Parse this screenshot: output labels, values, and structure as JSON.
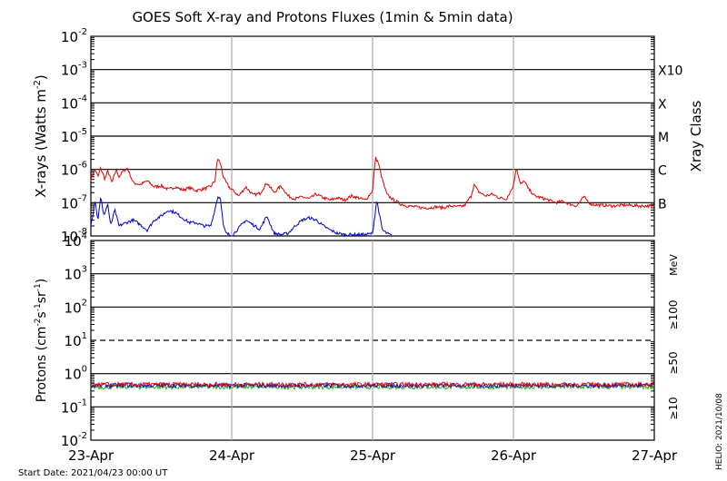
{
  "title": "GOES Soft X-ray and Protons Fluxes   (1min & 5min data)",
  "start_date": "Start Date: 2021/04/23 00:00 UT",
  "credit": "HELIO: 2021/10/08",
  "colors": {
    "xray_long": "#e00000",
    "xray_short": "#0000cc",
    "protons_10": "#e00000",
    "protons_50": "#0000cc",
    "protons_100": "#00bb00",
    "grid": "#000000",
    "day_divider": "#aaaaaa"
  },
  "chart_data": [
    {
      "type": "line",
      "panel": "xrays",
      "ylabel": "X-rays (Watts m",
      "ylabel_sup": "-2",
      "ylabel_close": ")",
      "yscale": "log",
      "ylim": [
        1e-08,
        0.01
      ],
      "y_tick_exponents": [
        "-2",
        "-3",
        "-4",
        "-5",
        "-6",
        "-7",
        "-8"
      ],
      "right_axis_label": "Xray Class",
      "right_classes": [
        {
          "label": "X10",
          "flux": 0.001
        },
        {
          "label": "X",
          "flux": 0.0001
        },
        {
          "label": "M",
          "flux": 1e-05
        },
        {
          "label": "C",
          "flux": 1e-06
        },
        {
          "label": "B",
          "flux": 1e-07
        }
      ],
      "x_range_days": [
        0,
        4
      ],
      "series": [
        {
          "key": "long",
          "x": [
            0,
            0.03,
            0.05,
            0.07,
            0.1,
            0.12,
            0.15,
            0.18,
            0.2,
            0.23,
            0.26,
            0.3,
            0.35,
            0.4,
            0.45,
            0.5,
            0.55,
            0.6,
            0.65,
            0.7,
            0.75,
            0.8,
            0.85,
            0.88,
            0.9,
            0.92,
            0.94,
            0.96,
            0.98,
            1.0,
            1.05,
            1.1,
            1.15,
            1.2,
            1.25,
            1.3,
            1.35,
            1.4,
            1.45,
            1.5,
            1.55,
            1.6,
            1.65,
            1.7,
            1.75,
            1.8,
            1.85,
            1.9,
            1.95,
            2.0,
            2.02,
            2.04,
            2.06,
            2.08,
            2.1,
            2.12,
            2.15,
            2.2,
            2.25,
            2.3,
            2.35,
            2.4,
            2.45,
            2.5,
            2.55,
            2.6,
            2.65,
            2.7,
            2.72,
            2.75,
            2.8,
            2.85,
            2.9,
            2.95,
            3.0,
            3.02,
            3.05,
            3.08,
            3.1,
            3.15,
            3.2,
            3.25,
            3.3,
            3.35,
            3.4,
            3.45,
            3.5,
            3.55,
            3.6,
            3.7,
            3.8,
            3.9,
            4.0
          ],
          "y": [
            5e-07,
            1e-06,
            6e-07,
            1.1e-06,
            5e-07,
            9e-07,
            4e-07,
            1e-06,
            6e-07,
            9e-07,
            1.1e-06,
            4e-07,
            3.5e-07,
            4.5e-07,
            3e-07,
            3.2e-07,
            2.5e-07,
            3e-07,
            2.4e-07,
            2.8e-07,
            2.3e-07,
            2.6e-07,
            3e-07,
            4.5e-07,
            2.2e-06,
            1.5e-06,
            6e-07,
            4e-07,
            3e-07,
            2.5e-07,
            1.6e-07,
            3e-07,
            1.7e-07,
            1.9e-07,
            4e-07,
            2e-07,
            3.2e-07,
            1.6e-07,
            1.3e-07,
            1.5e-07,
            1.3e-07,
            1.8e-07,
            1.4e-07,
            1.2e-07,
            1.4e-07,
            1.2e-07,
            1.6e-07,
            1.4e-07,
            1.2e-07,
            2.3e-07,
            2.3e-06,
            1.6e-06,
            7e-07,
            3.5e-07,
            1.8e-07,
            1.5e-07,
            1.2e-07,
            9e-08,
            8e-08,
            7.5e-08,
            7e-08,
            7e-08,
            7.5e-08,
            7e-08,
            8e-08,
            7.5e-08,
            8e-08,
            1.6e-07,
            3.5e-07,
            2.2e-07,
            1.6e-07,
            1.8e-07,
            1.4e-07,
            1.3e-07,
            3.2e-07,
            1.2e-06,
            3.5e-07,
            4.5e-07,
            2.8e-07,
            1.6e-07,
            1.4e-07,
            1.2e-07,
            1e-07,
            1.1e-07,
            9e-08,
            8e-08,
            1.5e-07,
            9e-08,
            8.5e-08,
            8e-08,
            8.5e-08,
            8e-08,
            8e-08
          ]
        },
        {
          "key": "short",
          "x": [
            0,
            0.03,
            0.05,
            0.07,
            0.09,
            0.12,
            0.14,
            0.17,
            0.2,
            0.25,
            0.3,
            0.35,
            0.4,
            0.45,
            0.5,
            0.55,
            0.6,
            0.65,
            0.7,
            0.75,
            0.8,
            0.85,
            0.88,
            0.9,
            0.92,
            0.94,
            0.96,
            1.0,
            1.1,
            1.2,
            1.25,
            1.3,
            1.35,
            1.4,
            1.45,
            1.5,
            1.55,
            1.6,
            1.65,
            1.7,
            1.75,
            1.8,
            1.85,
            1.9,
            1.95,
            2.0,
            2.03,
            2.05,
            2.07,
            2.1,
            2.12,
            2.14
          ],
          "y": [
            2e-08,
            1.2e-07,
            3e-08,
            1.6e-07,
            4e-08,
            9e-08,
            2e-08,
            6e-08,
            2e-08,
            2.5e-08,
            3e-08,
            2.2e-08,
            1.5e-08,
            3e-08,
            4e-08,
            6e-08,
            5e-08,
            3.5e-08,
            2.5e-08,
            2.5e-08,
            2e-08,
            2e-08,
            6e-08,
            1.5e-07,
            1.4e-07,
            2e-08,
            1.2e-08,
            1e-08,
            3e-08,
            1.6e-08,
            4e-08,
            1.2e-08,
            1.1e-08,
            1.2e-08,
            2e-08,
            3e-08,
            3.5e-08,
            3e-08,
            2e-08,
            1.5e-08,
            1.2e-08,
            1.1e-08,
            1.1e-08,
            1.1e-08,
            1.1e-08,
            1.2e-08,
            1.2e-07,
            4e-08,
            1.5e-08,
            1.2e-08,
            1.1e-08,
            1e-08
          ]
        }
      ]
    },
    {
      "type": "line",
      "panel": "protons",
      "ylabel": "Protons (cm",
      "ylabel_sup1": "-2",
      "ylabel_mid": "s",
      "ylabel_sup2": "-1",
      "ylabel_mid2": "sr",
      "ylabel_sup3": "-1",
      "ylabel_close": ")",
      "yscale": "log",
      "ylim": [
        0.01,
        10000
      ],
      "y_tick_exponents": [
        "4",
        "3",
        "2",
        "1",
        "0",
        "-1",
        "-2"
      ],
      "right_axis_unit": "MeV",
      "alert_threshold": 10,
      "series": [
        {
          "key": "100",
          "name": "≥100",
          "level": 0.4
        },
        {
          "key": "50",
          "name": "≥50",
          "level": 0.44
        },
        {
          "key": "10",
          "name": "≥10",
          "level": 0.47
        }
      ],
      "x_range_days": [
        0,
        4
      ],
      "categories": [
        "23-Apr",
        "24-Apr",
        "25-Apr",
        "26-Apr",
        "27-Apr"
      ]
    }
  ]
}
